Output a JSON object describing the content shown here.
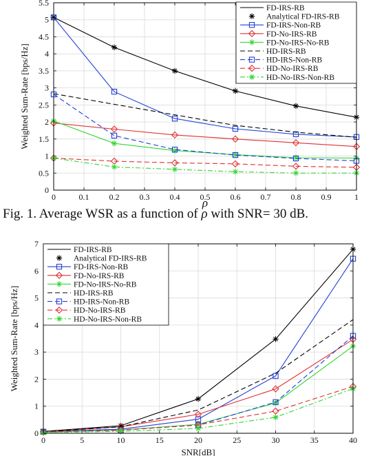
{
  "caption": {
    "prefix": "Fig. 1.  Average WSR as a function of ",
    "rho": "ρ",
    "suffix": " with SNR= 30 dB."
  },
  "colors": {
    "black": "#000000",
    "blue": "#1f3fd8",
    "red": "#e03030",
    "green": "#33d633",
    "grid": "#d9d9d9"
  },
  "chart_data": [
    {
      "type": "line",
      "xlabel": "ρ",
      "ylabel": "Weighted Sum-Rate [bps/Hz]",
      "xlim": [
        0,
        1
      ],
      "ylim": [
        0,
        5.5
      ],
      "xticks": [
        0,
        0.1,
        0.2,
        0.3,
        0.4,
        0.5,
        0.6,
        0.7,
        0.8,
        0.9,
        1
      ],
      "xtick_labels": [
        "0",
        "0.1",
        "0.2",
        "0.3",
        "0.4",
        "0.5",
        "0.6",
        "0.7",
        "0.8",
        "0.9",
        "1"
      ],
      "yticks": [
        0,
        0.5,
        1,
        1.5,
        2,
        2.5,
        3,
        3.5,
        4,
        4.5,
        5,
        5.5
      ],
      "ytick_labels": [
        "0",
        "0.5",
        "1",
        "1.5",
        "2",
        "2.5",
        "3",
        "3.5",
        "4",
        "4.5",
        "5",
        "5.5"
      ],
      "grid": true,
      "legend_position": "top-right",
      "series": [
        {
          "name": "FD-IRS-RB",
          "color": "black",
          "dash": "solid",
          "marker": "none",
          "x": [
            0,
            0.2,
            0.4,
            0.6,
            0.8,
            1
          ],
          "y": [
            5.07,
            4.19,
            3.5,
            2.91,
            2.47,
            2.14
          ]
        },
        {
          "name": "Analytical FD-IRS-RB",
          "color": "black",
          "dash": "none",
          "marker": "asterisk",
          "x": [
            0,
            0.2,
            0.4,
            0.6,
            0.8,
            1
          ],
          "y": [
            5.07,
            4.19,
            3.5,
            2.91,
            2.47,
            2.14
          ]
        },
        {
          "name": "FD-IRS-Non-RB",
          "color": "blue",
          "dash": "solid",
          "marker": "square",
          "x": [
            0,
            0.2,
            0.4,
            0.6,
            0.8,
            1
          ],
          "y": [
            5.07,
            2.89,
            2.1,
            1.8,
            1.64,
            1.56
          ]
        },
        {
          "name": "FD-No-IRS-RB",
          "color": "red",
          "dash": "solid",
          "marker": "diamond",
          "x": [
            0,
            0.2,
            0.4,
            0.6,
            0.8,
            1
          ],
          "y": [
            1.97,
            1.79,
            1.62,
            1.5,
            1.39,
            1.28
          ]
        },
        {
          "name": "FD-No-IRS-No-RB",
          "color": "green",
          "dash": "solid",
          "marker": "asterisk",
          "x": [
            0,
            0.2,
            0.4,
            0.6,
            0.8,
            1
          ],
          "y": [
            2.03,
            1.37,
            1.16,
            1.04,
            0.95,
            0.94
          ]
        },
        {
          "name": "HD-IRS-RB",
          "color": "black",
          "dash": "dashed",
          "marker": "none",
          "x": [
            0,
            0.2,
            0.4,
            0.6,
            0.8,
            1
          ],
          "y": [
            2.83,
            2.52,
            2.21,
            1.9,
            1.7,
            1.55
          ]
        },
        {
          "name": "HD-IRS-Non-RB",
          "color": "blue",
          "dash": "dashed",
          "marker": "square",
          "x": [
            0,
            0.2,
            0.4,
            0.6,
            0.8,
            1
          ],
          "y": [
            2.81,
            1.6,
            1.19,
            1.03,
            0.93,
            0.86
          ]
        },
        {
          "name": "HD-No-IRS-RB",
          "color": "red",
          "dash": "dashed",
          "marker": "diamond",
          "x": [
            0,
            0.2,
            0.4,
            0.6,
            0.8,
            1
          ],
          "y": [
            0.94,
            0.85,
            0.8,
            0.77,
            0.7,
            0.67
          ]
        },
        {
          "name": "HD-No-IRS-Non-RB",
          "color": "green",
          "dash": "dashdot",
          "marker": "asterisk",
          "x": [
            0,
            0.2,
            0.4,
            0.6,
            0.8,
            1
          ],
          "y": [
            0.94,
            0.68,
            0.61,
            0.54,
            0.5,
            0.5
          ]
        }
      ]
    },
    {
      "type": "line",
      "xlabel": "SNR[dB]",
      "ylabel": "Weighted Sum-Rate [bps/Hz]",
      "xlim": [
        0,
        40
      ],
      "ylim": [
        0,
        7
      ],
      "xticks": [
        0,
        5,
        10,
        15,
        20,
        25,
        30,
        35,
        40
      ],
      "xtick_labels": [
        "0",
        "5",
        "10",
        "15",
        "20",
        "25",
        "30",
        "35",
        "40"
      ],
      "yticks": [
        0,
        1,
        2,
        3,
        4,
        5,
        6,
        7
      ],
      "ytick_labels": [
        "0",
        "1",
        "2",
        "3",
        "4",
        "5",
        "6",
        "7"
      ],
      "grid": true,
      "legend_position": "top-left",
      "series": [
        {
          "name": "FD-IRS-RB",
          "color": "black",
          "dash": "solid",
          "marker": "none",
          "x": [
            0,
            10,
            20,
            30,
            40
          ],
          "y": [
            0.07,
            0.28,
            1.27,
            3.48,
            6.8
          ]
        },
        {
          "name": "Analytical FD-IRS-RB",
          "color": "black",
          "dash": "none",
          "marker": "asterisk",
          "x": [
            0,
            10,
            20,
            30,
            40
          ],
          "y": [
            0.07,
            0.28,
            1.27,
            3.48,
            6.8
          ]
        },
        {
          "name": "FD-IRS-Non-RB",
          "color": "blue",
          "dash": "solid",
          "marker": "square",
          "x": [
            0,
            10,
            20,
            30,
            40
          ],
          "y": [
            0.06,
            0.15,
            0.52,
            2.12,
            6.45
          ]
        },
        {
          "name": "FD-No-IRS-RB",
          "color": "red",
          "dash": "solid",
          "marker": "diamond",
          "x": [
            0,
            10,
            20,
            30,
            40
          ],
          "y": [
            0.05,
            0.24,
            0.7,
            1.64,
            3.47
          ]
        },
        {
          "name": "FD-No-IRS-No-RB",
          "color": "green",
          "dash": "solid",
          "marker": "asterisk",
          "x": [
            0,
            10,
            20,
            30,
            40
          ],
          "y": [
            0.04,
            0.12,
            0.33,
            1.12,
            3.22
          ]
        },
        {
          "name": "HD-IRS-RB",
          "color": "black",
          "dash": "dashed",
          "marker": "none",
          "x": [
            0,
            10,
            20,
            30,
            40
          ],
          "y": [
            0.06,
            0.24,
            0.86,
            2.22,
            4.2
          ]
        },
        {
          "name": "HD-IRS-Non-RB",
          "color": "blue",
          "dash": "dashed",
          "marker": "square",
          "x": [
            0,
            10,
            20,
            30,
            40
          ],
          "y": [
            0.05,
            0.12,
            0.3,
            1.15,
            3.6
          ]
        },
        {
          "name": "HD-No-IRS-RB",
          "color": "red",
          "dash": "dashed",
          "marker": "diamond",
          "x": [
            0,
            10,
            20,
            30,
            40
          ],
          "y": [
            0.04,
            0.11,
            0.31,
            0.82,
            1.73
          ]
        },
        {
          "name": "HD-No-IRS-Non-RB",
          "color": "green",
          "dash": "dashdot",
          "marker": "asterisk",
          "x": [
            0,
            10,
            20,
            30,
            40
          ],
          "y": [
            0.03,
            0.07,
            0.18,
            0.59,
            1.65
          ]
        }
      ]
    }
  ]
}
